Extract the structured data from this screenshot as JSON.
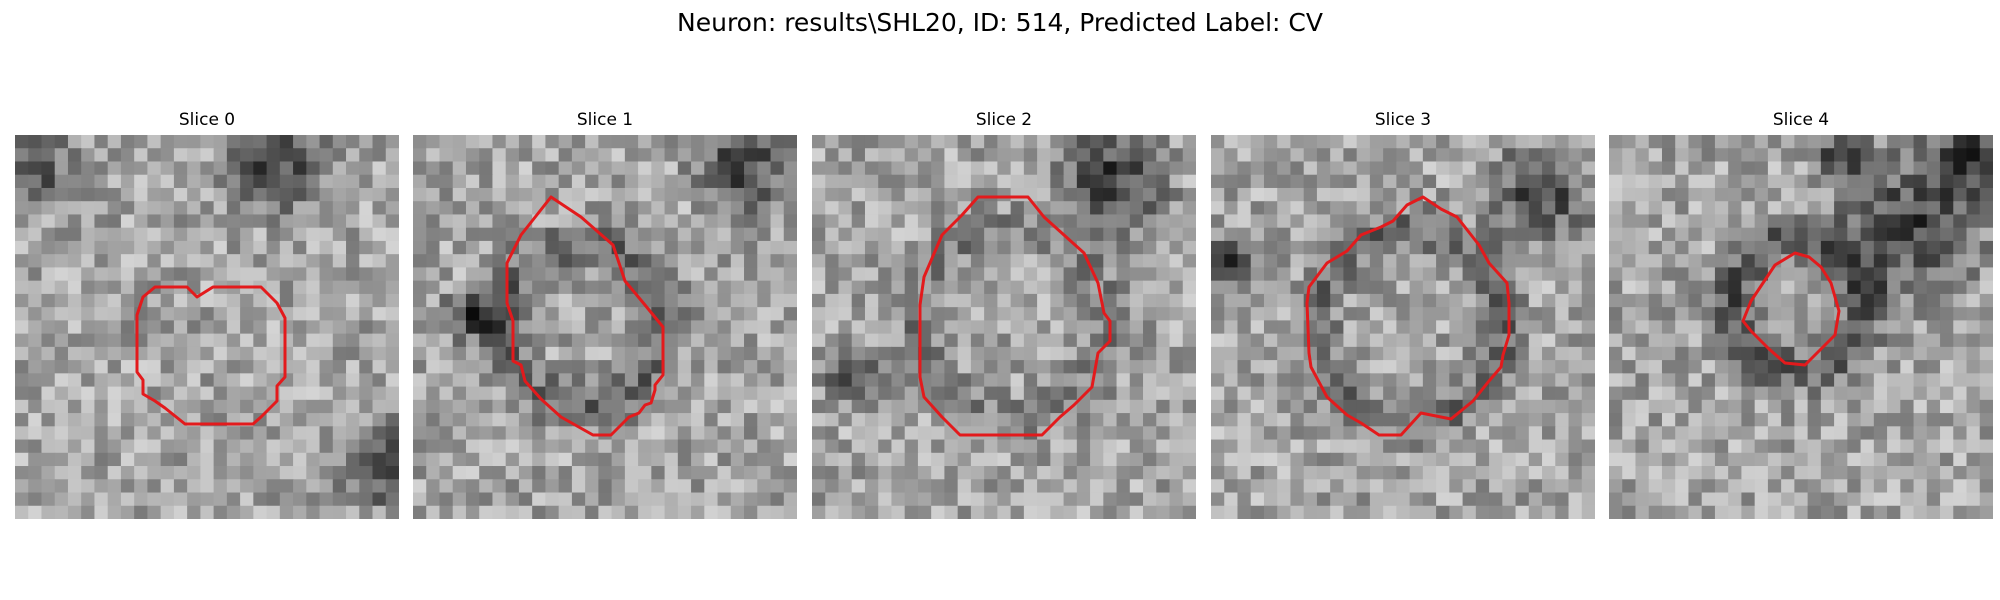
{
  "figure": {
    "title": "Neuron: results\\SHL20, ID: 514, Predicted Label: CV"
  },
  "colors": {
    "contour": "#e31a1c",
    "background": "#ffffff",
    "colormap": "gray"
  },
  "panels": [
    {
      "title": "Slice 0",
      "contour_icon": "red-contour-outline"
    },
    {
      "title": "Slice 1",
      "contour_icon": "red-contour-outline"
    },
    {
      "title": "Slice 2",
      "contour_icon": "red-contour-outline"
    },
    {
      "title": "Slice 3",
      "contour_icon": "red-contour-outline"
    },
    {
      "title": "Slice 4",
      "contour_icon": "red-contour-outline"
    }
  ]
}
